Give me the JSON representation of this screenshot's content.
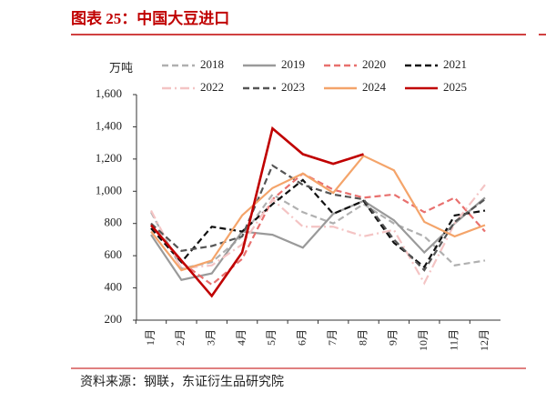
{
  "chart_data": {
    "type": "line",
    "title": "图表 25：中国大豆进口",
    "y_label": "万吨",
    "source": "资料来源：钢联，东证衍生品研究院",
    "categories": [
      "1月",
      "2月",
      "3月",
      "4月",
      "5月",
      "6月",
      "7月",
      "8月",
      "9月",
      "10月",
      "11月",
      "12月"
    ],
    "ylim": [
      200,
      1600
    ],
    "yticks": [
      200,
      400,
      600,
      800,
      {
        "value": 1000,
        "label": "1,000"
      },
      {
        "value": 1200,
        "label": "1,200"
      },
      {
        "value": 1400,
        "label": "1,400"
      },
      {
        "value": 1600,
        "label": "1,600"
      }
    ],
    "series": [
      {
        "name": "2018",
        "color": "#b0b0b0",
        "dash": "dashed",
        "values": [
          870,
          520,
          560,
          720,
          980,
          870,
          800,
          920,
          800,
          720,
          540,
          570
        ]
      },
      {
        "name": "2019",
        "color": "#9a9a9a",
        "dash": "solid",
        "values": [
          730,
          450,
          490,
          750,
          730,
          650,
          860,
          940,
          820,
          620,
          800,
          960
        ]
      },
      {
        "name": "2020",
        "color": "#e8706e",
        "dash": "dashed",
        "values": [
          800,
          560,
          420,
          580,
          950,
          1110,
          1010,
          960,
          980,
          870,
          960,
          750
        ]
      },
      {
        "name": "2021",
        "color": "#111111",
        "dash": "dashed",
        "values": [
          770,
          560,
          780,
          750,
          920,
          1070,
          860,
          940,
          680,
          530,
          850,
          880
        ]
      },
      {
        "name": "2022",
        "color": "#f4c4c4",
        "dash": "dashdot",
        "values": [
          880,
          520,
          540,
          670,
          950,
          780,
          780,
          720,
          760,
          430,
          800,
          1040
        ]
      },
      {
        "name": "2023",
        "color": "#555555",
        "dash": "dashed",
        "values": [
          800,
          630,
          660,
          720,
          1160,
          1040,
          980,
          950,
          700,
          510,
          810,
          950
        ]
      },
      {
        "name": "2024",
        "color": "#f4a46a",
        "dash": "solid",
        "values": [
          750,
          510,
          570,
          850,
          1020,
          1110,
          990,
          1220,
          1130,
          810,
          720,
          790
        ]
      },
      {
        "name": "2025",
        "color": "#c00000",
        "dash": "solid",
        "values": [
          790,
          570,
          350,
          620,
          1390,
          1230,
          1170,
          1230,
          null,
          null,
          null,
          null
        ]
      }
    ]
  }
}
